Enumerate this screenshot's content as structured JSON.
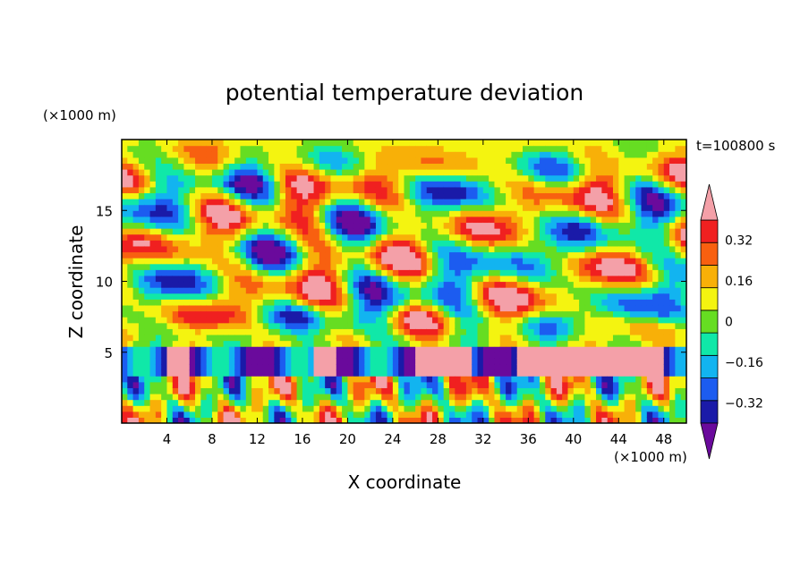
{
  "chart_data": {
    "type": "heatmap",
    "title": "potential temperature deviation",
    "xlabel": "X coordinate",
    "ylabel": "Z coordinate",
    "x_unit_label": "(×1000 m)",
    "y_unit_label": "(×1000 m)",
    "time_label": "t=100800 s",
    "xlim": [
      0,
      50
    ],
    "ylim": [
      0,
      20
    ],
    "x_ticks": [
      4,
      8,
      12,
      16,
      20,
      24,
      28,
      32,
      36,
      40,
      44,
      48
    ],
    "y_ticks": [
      5,
      10,
      15
    ],
    "colorbar": {
      "labels": [
        "0.32",
        "0.16",
        "0",
        "−0.16",
        "−0.32"
      ],
      "label_values": [
        0.32,
        0.16,
        0,
        -0.16,
        -0.32
      ],
      "levels": [
        -0.4,
        -0.32,
        -0.24,
        -0.16,
        -0.08,
        0,
        0.08,
        0.16,
        0.24,
        0.32,
        0.4
      ],
      "colors": [
        "#6a0a9c",
        "#1a1aa8",
        "#1c5cf0",
        "#12b4f0",
        "#10e8a8",
        "#66dd22",
        "#f4f410",
        "#f8b008",
        "#f86010",
        "#f02020",
        "#f4a0a8"
      ],
      "extend": "both"
    },
    "field_description": "Filled contours of potential temperature deviation in a vertical (X-Z) cross-section; banded wave structures aloft, strong positive anomalies near z=3-5 km at x=36-48 km."
  }
}
